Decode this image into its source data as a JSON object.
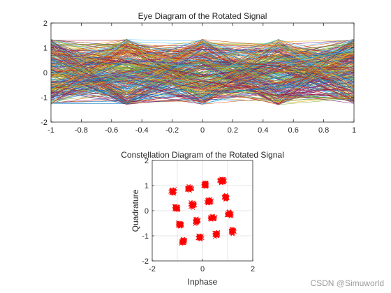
{
  "watermark": "CSDN @Simuworld",
  "chart_data": [
    {
      "type": "line",
      "title": "Eye Diagram of the Rotated Signal",
      "xlabel": "",
      "ylabel": "",
      "xlim": [
        -1,
        1
      ],
      "ylim": [
        -2,
        2
      ],
      "x_ticks": [
        "-1",
        "-0.8",
        "-0.6",
        "-0.4",
        "-0.2",
        "0",
        "0.2",
        "0.4",
        "0.6",
        "0.8",
        "1"
      ],
      "y_ticks": [
        "-2",
        "-1",
        "0",
        "1",
        "2"
      ],
      "grid": false,
      "trace_x": [
        -1,
        -0.5,
        0,
        0.5,
        1
      ],
      "traces_band": [
        -1.3,
        1.35
      ],
      "colors": [
        "#0072BD",
        "#D95319",
        "#EDB120",
        "#7E2F8E",
        "#77AC30",
        "#4DBEEE",
        "#A2142F"
      ]
    },
    {
      "type": "scatter",
      "title": "Constellation Diagram of the Rotated Signal",
      "xlabel": "Inphase",
      "ylabel": "Quadrature",
      "xlim": [
        -2,
        2
      ],
      "ylim": [
        -2,
        2
      ],
      "x_ticks": [
        "-2",
        "0",
        "2"
      ],
      "y_ticks": [
        "-2",
        "-1",
        "0",
        "1",
        "2"
      ],
      "grid": true,
      "marker": "x",
      "color": "#FF0000",
      "clusters": [
        {
          "x": -1.18,
          "y": 0.76
        },
        {
          "x": -0.52,
          "y": 0.9
        },
        {
          "x": 0.12,
          "y": 1.04
        },
        {
          "x": 0.78,
          "y": 1.18
        },
        {
          "x": -1.04,
          "y": 0.1
        },
        {
          "x": -0.38,
          "y": 0.24
        },
        {
          "x": 0.26,
          "y": 0.38
        },
        {
          "x": 0.92,
          "y": 0.52
        },
        {
          "x": -0.9,
          "y": -0.56
        },
        {
          "x": -0.24,
          "y": -0.42
        },
        {
          "x": 0.4,
          "y": -0.28
        },
        {
          "x": 1.06,
          "y": -0.14
        },
        {
          "x": -0.76,
          "y": -1.22
        },
        {
          "x": -0.1,
          "y": -1.08
        },
        {
          "x": 0.54,
          "y": -0.94
        },
        {
          "x": 1.2,
          "y": -0.8
        }
      ]
    }
  ]
}
